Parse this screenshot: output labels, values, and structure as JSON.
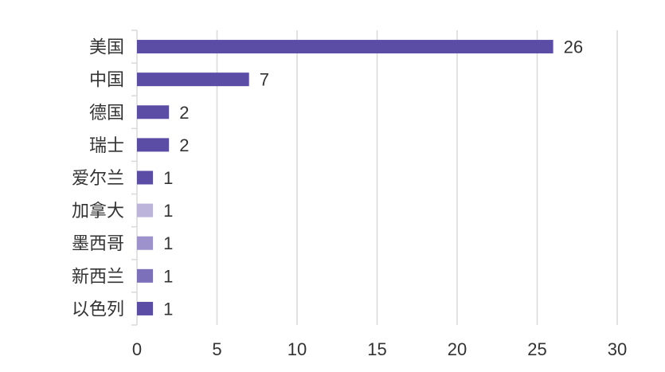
{
  "chart_data": {
    "type": "bar",
    "orientation": "horizontal",
    "categories": [
      "美国",
      "中国",
      "德国",
      "瑞士",
      "爱尔兰",
      "加拿大",
      "墨西哥",
      "新西兰",
      "以色列"
    ],
    "values": [
      26,
      7,
      2,
      2,
      1,
      1,
      1,
      1,
      1
    ],
    "bar_colors": [
      "#5b4ca6",
      "#5b4ca6",
      "#5b4ca6",
      "#5b4ca6",
      "#5b4ca6",
      "#bdb4dc",
      "#9d92cc",
      "#7c70ba",
      "#5b4ca6"
    ],
    "xlim": [
      0,
      30
    ],
    "xticks": [
      0,
      5,
      10,
      15,
      20,
      25,
      30
    ],
    "grid": true,
    "data_labels": true,
    "title": "",
    "xlabel": "",
    "ylabel": ""
  }
}
